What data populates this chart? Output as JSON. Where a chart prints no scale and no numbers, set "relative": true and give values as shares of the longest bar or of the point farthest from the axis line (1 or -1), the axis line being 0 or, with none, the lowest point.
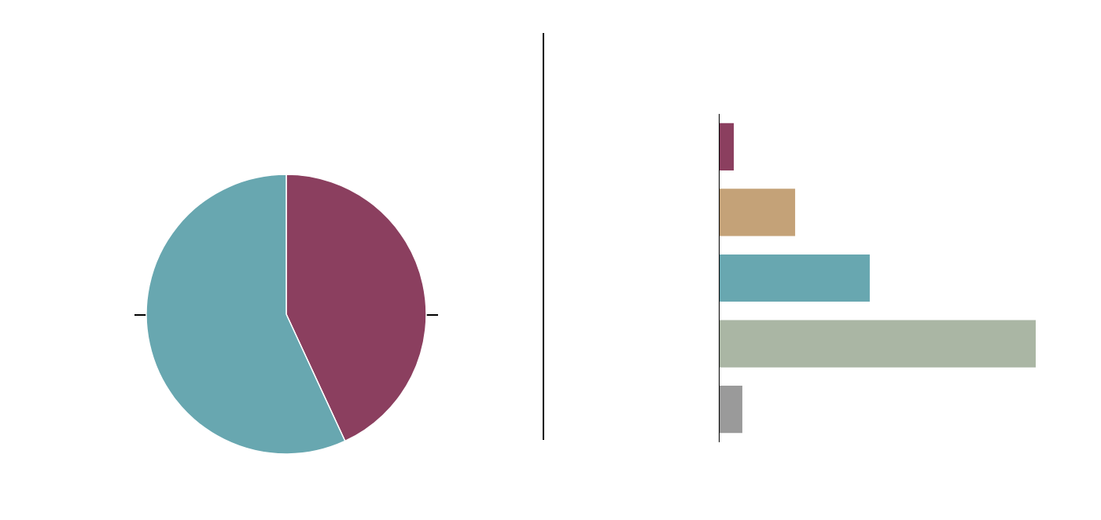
{
  "chart_data": [
    {
      "type": "pie",
      "categories": [
        null,
        null
      ],
      "values": [
        43.1,
        56.9
      ],
      "colors": [
        "#8b3f5f",
        "#68a7b0"
      ]
    },
    {
      "type": "bar",
      "orientation": "horizontal",
      "relative": true,
      "categories": [
        null,
        null,
        null,
        null,
        null
      ],
      "values": [
        0.045,
        0.239,
        0.475,
        1,
        0.072
      ],
      "colors": [
        "#8b3f5f",
        "#c4a278",
        "#68a7b0",
        "#aab6a4",
        "#9a9a9a"
      ]
    }
  ]
}
